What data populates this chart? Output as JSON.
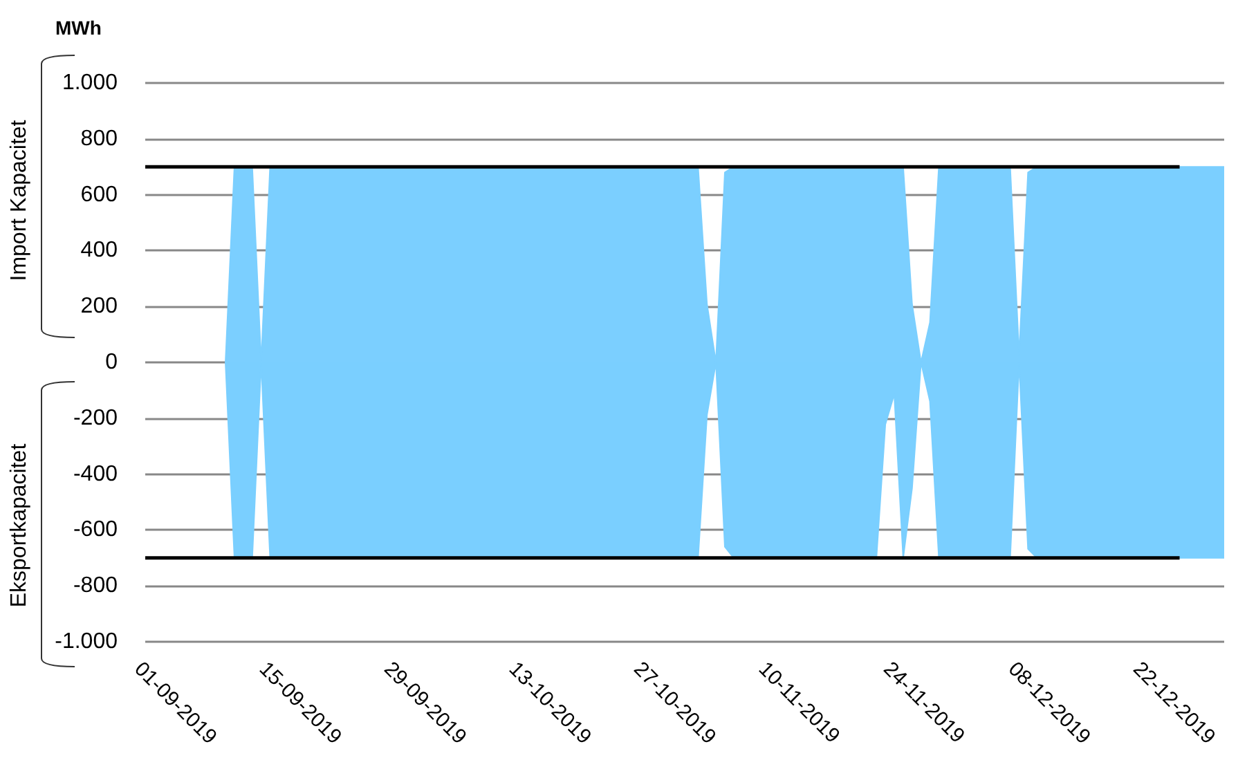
{
  "chart_data": {
    "type": "area",
    "ylabel": "MWh",
    "annotations": [
      "Import Kapacitet",
      "Eksportkapacitet"
    ],
    "xlim": [
      "2019-09-01",
      "2019-12-31"
    ],
    "xticks": [
      {
        "value": "2019-09-01",
        "label": "01-09-2019"
      },
      {
        "value": "2019-09-15",
        "label": "15-09-2019"
      },
      {
        "value": "2019-09-29",
        "label": "29-09-2019"
      },
      {
        "value": "2019-10-13",
        "label": "13-10-2019"
      },
      {
        "value": "2019-10-27",
        "label": "27-10-2019"
      },
      {
        "value": "2019-11-10",
        "label": "10-11-2019"
      },
      {
        "value": "2019-11-24",
        "label": "24-11-2019"
      },
      {
        "value": "2019-12-08",
        "label": "08-12-2019"
      },
      {
        "value": "2019-12-22",
        "label": "22-12-2019"
      }
    ],
    "ylim": [
      -1000,
      1000
    ],
    "yticks": [
      {
        "value": -1000,
        "label": "-1.000"
      },
      -800,
      -600,
      -400,
      -200,
      0,
      200,
      400,
      600,
      800,
      {
        "value": 1000,
        "label": "1.000"
      }
    ],
    "grid": "y",
    "marker": "none",
    "series": [
      {
        "color": "#7acfff",
        "x": [
          "2019-09-10",
          "2019-09-11",
          "2019-09-13",
          "2019-09-14",
          "2019-09-15",
          "2019-11-02",
          "2019-11-03",
          "2019-11-04",
          "2019-11-05",
          "2019-11-06",
          "2019-11-22",
          "2019-11-23",
          "2019-11-24",
          "2019-11-25",
          "2019-11-26",
          "2019-11-27",
          "2019-11-28",
          "2019-11-29",
          "2019-12-07",
          "2019-12-08",
          "2019-12-09",
          "2019-12-10",
          "2019-12-31"
        ],
        "values": [
          0,
          -700,
          -700,
          0,
          -700,
          -700,
          -188,
          0,
          -660,
          -700,
          -700,
          -222,
          -114,
          -700,
          -450,
          0,
          -139,
          -700,
          -700,
          0,
          -668,
          -700,
          -700
        ]
      },
      {
        "color": "#7bcfff",
        "x": [
          "2019-09-10",
          "2019-09-11",
          "2019-09-13",
          "2019-09-14",
          "2019-09-15",
          "2019-11-02",
          "2019-11-03",
          "2019-11-04",
          "2019-11-05",
          "2019-11-06",
          "2019-11-25",
          "2019-11-26",
          "2019-11-27",
          "2019-11-28",
          "2019-11-29",
          "2019-12-07",
          "2019-12-08",
          "2019-12-09",
          "2019-12-10",
          "2019-12-31"
        ],
        "values": [
          0,
          700,
          700,
          0,
          700,
          700,
          208,
          0,
          680,
          700,
          700,
          208,
          0,
          143,
          700,
          700,
          25,
          680,
          700,
          700
        ]
      },
      {
        "type": "line",
        "color": "#000000",
        "line_style": "solid",
        "x": [
          "2019-09-01",
          "2019-12-26"
        ],
        "values": [
          700,
          700
        ]
      },
      {
        "type": "line",
        "color": "#000000",
        "line_style": "solid",
        "x": [
          "2019-09-01",
          "2019-12-26"
        ],
        "values": [
          -700,
          -700
        ]
      }
    ]
  }
}
